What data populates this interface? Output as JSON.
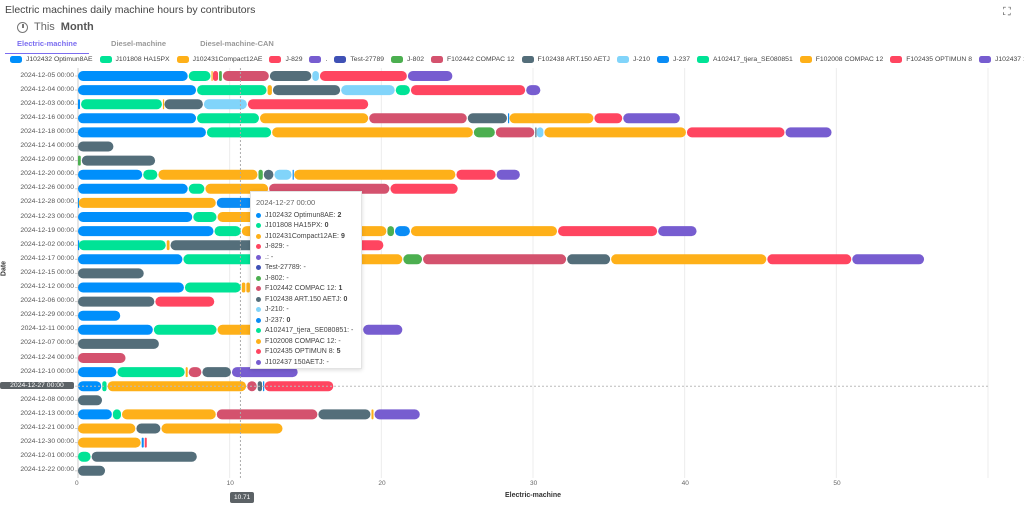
{
  "header": {
    "title": "Electric machines daily machine hours by contributors",
    "expand_icon": "expand-icon"
  },
  "period": {
    "prefix": "This",
    "label": "Month",
    "icon": "clock-icon"
  },
  "tabs": [
    {
      "label": "Electric-machine",
      "active": true
    },
    {
      "label": "Diesel-machine",
      "active": false
    },
    {
      "label": "Diesel-machine-CAN",
      "active": false
    }
  ],
  "chart_data": {
    "type": "bar",
    "orientation": "horizontal",
    "stacked": true,
    "xlabel": "Electric-machine",
    "ylabel": "Date",
    "xlim": [
      0,
      60
    ],
    "x_ticks": [
      "0",
      "10",
      "20",
      "30",
      "40",
      "50"
    ],
    "grid": true,
    "legend_position": "top",
    "series": [
      {
        "name": "J102432 Optimun8AE",
        "color": "#008ffb"
      },
      {
        "name": "J101808 HA15PX",
        "color": "#00e396"
      },
      {
        "name": "J102431Compact12AE",
        "color": "#feb019"
      },
      {
        "name": "J-829",
        "color": "#ff4560"
      },
      {
        "name": ".",
        "color": "#775dd0"
      },
      {
        "name": "Test-27789",
        "color": "#3f51b5"
      },
      {
        "name": "J-802",
        "color": "#4caf50"
      },
      {
        "name": "F102442 COMPAC 12",
        "color": "#d4526e"
      },
      {
        "name": "F102438 ART.150 AETJ",
        "color": "#546e7a"
      },
      {
        "name": "J-210",
        "color": "#81d4fa"
      },
      {
        "name": "J-237",
        "color": "#0a8cf5"
      },
      {
        "name": "A102417_tjera_SE080851",
        "color": "#00e396"
      },
      {
        "name": "F102008 COMPAC 12",
        "color": "#feb019"
      },
      {
        "name": "F102435 OPTIMUN 8",
        "color": "#ff4560"
      },
      {
        "name": "J102437 150AETJ",
        "color": "#775dd0"
      }
    ],
    "categories": [
      "2024-12-05 00:00",
      "2024-12-04 00:00",
      "2024-12-03 00:00",
      "2024-12-16 00:00",
      "2024-12-18 00:00",
      "2024-12-14 00:00",
      "2024-12-09 00:00",
      "2024-12-20 00:00",
      "2024-12-26 00:00",
      "2024-12-28 00:00",
      "2024-12-23 00:00",
      "2024-12-19 00:00",
      "2024-12-02 00:00",
      "2024-12-17 00:00",
      "2024-12-15 00:00",
      "2024-12-12 00:00",
      "2024-12-06 00:00",
      "2024-12-29 00:00",
      "2024-12-11 00:00",
      "2024-12-07 00:00",
      "2024-12-24 00:00",
      "2024-12-10 00:00",
      "2024-12-27 00:00",
      "2024-12-08 00:00",
      "2024-12-13 00:00",
      "2024-12-21 00:00",
      "2024-12-30 00:00",
      "2024-12-01 00:00",
      "2024-12-22 00:00"
    ],
    "rows": [
      [
        [
          0,
          7.3
        ],
        [
          1,
          1.5
        ],
        [
          2,
          0.1
        ],
        [
          3,
          0.4
        ],
        [
          6,
          0.25
        ],
        [
          7,
          3.1
        ],
        [
          8,
          2.8
        ],
        [
          9,
          0.5
        ],
        [
          13,
          5.8
        ],
        [
          14,
          3.0
        ]
      ],
      [
        [
          0,
          7.85
        ],
        [
          1,
          4.65
        ],
        [
          2,
          0.35
        ],
        [
          8,
          4.5
        ],
        [
          9,
          3.6
        ],
        [
          11,
          1.0
        ],
        [
          13,
          7.6
        ],
        [
          14,
          1.0
        ]
      ],
      [
        [
          0,
          0.2
        ],
        [
          1,
          5.4
        ],
        [
          2,
          0.1
        ],
        [
          8,
          2.6
        ],
        [
          9,
          2.9
        ],
        [
          13,
          8.0
        ]
      ],
      [
        [
          0,
          7.85
        ],
        [
          1,
          4.15
        ],
        [
          2,
          7.2
        ],
        [
          7,
          6.5
        ],
        [
          8,
          2.65
        ],
        [
          10,
          0.1
        ],
        [
          12,
          5.6
        ],
        [
          13,
          1.9
        ],
        [
          14,
          3.8
        ]
      ],
      [
        [
          0,
          8.5
        ],
        [
          1,
          4.3
        ],
        [
          2,
          13.3
        ],
        [
          6,
          1.45
        ],
        [
          7,
          2.6
        ],
        [
          8,
          0.1
        ],
        [
          9,
          0.5
        ],
        [
          12,
          9.4
        ],
        [
          13,
          6.5
        ],
        [
          14,
          3.1
        ]
      ],
      [
        [
          8,
          2.4
        ]
      ],
      [
        [
          6,
          0.25
        ],
        [
          8,
          4.9
        ]
      ],
      [
        [
          0,
          4.3
        ],
        [
          1,
          1.0
        ],
        [
          2,
          6.6
        ],
        [
          6,
          0.35
        ],
        [
          8,
          0.7
        ],
        [
          9,
          1.2
        ],
        [
          10,
          0.1
        ],
        [
          12,
          10.7
        ],
        [
          13,
          2.65
        ],
        [
          14,
          1.6
        ]
      ],
      [
        [
          0,
          7.3
        ],
        [
          1,
          1.1
        ],
        [
          2,
          4.2
        ],
        [
          7,
          8.0
        ],
        [
          13,
          4.5
        ]
      ],
      [
        [
          0,
          0.05
        ],
        [
          2,
          9.1
        ],
        [
          10,
          2.5
        ]
      ],
      [
        [
          0,
          7.6
        ],
        [
          1,
          1.6
        ],
        [
          2,
          3.5
        ]
      ],
      [
        [
          0,
          9.0
        ],
        [
          1,
          1.8
        ],
        [
          2,
          9.6
        ],
        [
          6,
          0.5
        ],
        [
          10,
          1.05
        ],
        [
          12,
          9.7
        ],
        [
          13,
          6.6
        ],
        [
          14,
          2.6
        ]
      ],
      [
        [
          0,
          0.05
        ],
        [
          1,
          5.8
        ],
        [
          2,
          0.25
        ],
        [
          8,
          8.5
        ],
        [
          13,
          5.6
        ]
      ],
      [
        [
          0,
          6.95
        ],
        [
          1,
          5.0
        ],
        [
          2,
          9.5
        ],
        [
          6,
          1.3
        ],
        [
          7,
          9.5
        ],
        [
          8,
          2.9
        ],
        [
          12,
          10.3
        ],
        [
          13,
          5.6
        ],
        [
          14,
          4.8
        ]
      ],
      [
        [
          8,
          4.4
        ]
      ],
      [
        [
          0,
          7.05
        ],
        [
          1,
          3.75
        ],
        [
          2,
          0.3
        ],
        [
          12,
          0.3
        ]
      ],
      [
        [
          8,
          5.1
        ],
        [
          13,
          3.95
        ]
      ],
      [
        [
          0,
          2.85
        ]
      ],
      [
        [
          0,
          5.0
        ],
        [
          1,
          4.2
        ],
        [
          2,
          9.6
        ],
        [
          14,
          2.65
        ]
      ],
      [
        [
          8,
          5.4
        ]
      ],
      [
        [
          7,
          3.2
        ]
      ],
      [
        [
          0,
          2.6
        ],
        [
          1,
          4.5
        ],
        [
          2,
          0.2
        ],
        [
          7,
          0.9
        ],
        [
          8,
          1.95
        ],
        [
          14,
          4.4
        ]
      ],
      [
        [
          0,
          1.6
        ],
        [
          1,
          0.35
        ],
        [
          2,
          9.2
        ],
        [
          7,
          0.7
        ],
        [
          8,
          0.35
        ],
        [
          10,
          0.1
        ],
        [
          13,
          4.6
        ]
      ],
      [
        [
          8,
          1.65
        ]
      ],
      [
        [
          0,
          2.3
        ],
        [
          1,
          0.6
        ],
        [
          2,
          6.25
        ],
        [
          7,
          6.7
        ],
        [
          8,
          3.5
        ],
        [
          12,
          0.2
        ],
        [
          14,
          3.05
        ]
      ],
      [
        [
          2,
          3.85
        ],
        [
          8,
          1.65
        ],
        [
          12,
          8.05
        ]
      ],
      [
        [
          2,
          4.2
        ],
        [
          10,
          0.2
        ],
        [
          13,
          0.2
        ]
      ],
      [
        [
          1,
          0.9
        ],
        [
          8,
          7.0
        ]
      ],
      [
        [
          8,
          1.85
        ]
      ]
    ],
    "crosshair": {
      "x_value": "10.71",
      "category": "2024-12-27 00:00"
    }
  },
  "tooltip": {
    "title": "2024-12-27 00:00",
    "rows": [
      {
        "label": "J102432 Optimun8AE:",
        "value": "2",
        "color": "#008ffb"
      },
      {
        "label": "J101808 HA15PX:",
        "value": "0",
        "color": "#00e396"
      },
      {
        "label": "J102431Compact12AE:",
        "value": "9",
        "color": "#feb019"
      },
      {
        "label": "J-829: -",
        "value": "",
        "color": "#ff4560"
      },
      {
        "label": ".: -",
        "value": "",
        "color": "#775dd0"
      },
      {
        "label": "Test-27789: -",
        "value": "",
        "color": "#3f51b5"
      },
      {
        "label": "J-802: -",
        "value": "",
        "color": "#4caf50"
      },
      {
        "label": "F102442 COMPAC 12:",
        "value": "1",
        "color": "#d4526e"
      },
      {
        "label": "F102438 ART.150 AETJ:",
        "value": "0",
        "color": "#546e7a"
      },
      {
        "label": "J-210: -",
        "value": "",
        "color": "#81d4fa"
      },
      {
        "label": "J-237:",
        "value": "0",
        "color": "#0a8cf5"
      },
      {
        "label": "A102417_tjera_SE080851: -",
        "value": "",
        "color": "#00e396"
      },
      {
        "label": "F102008 COMPAC 12: -",
        "value": "",
        "color": "#feb019"
      },
      {
        "label": "F102435 OPTIMUN 8:",
        "value": "5",
        "color": "#ff4560"
      },
      {
        "label": "J102437 150AETJ: -",
        "value": "",
        "color": "#775dd0"
      }
    ]
  }
}
